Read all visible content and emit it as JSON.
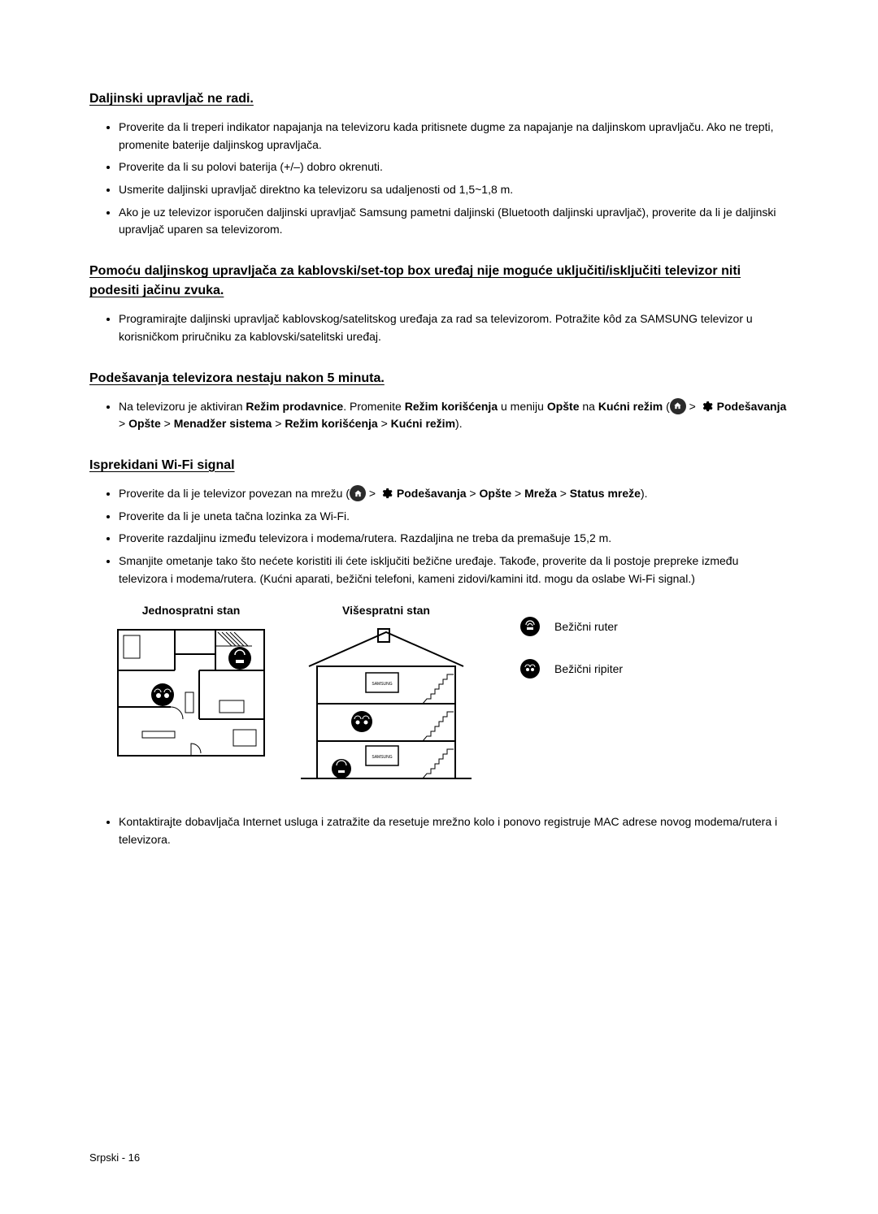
{
  "sections": [
    {
      "title": "Daljinski upravljač ne radi.",
      "items": [
        {
          "html": "Proverite da li treperi indikator napajanja na televizoru kada pritisnete dugme za napajanje na daljinskom upravljaču. Ako ne trepti, promenite baterije daljinskog upravljača."
        },
        {
          "html": "Proverite da li su polovi baterija (+/–) dobro okrenuti."
        },
        {
          "html": "Usmerite daljinski upravljač direktno ka televizoru sa udaljenosti od 1,5~1,8 m."
        },
        {
          "html": "Ako je uz televizor isporučen daljinski upravljač Samsung pametni daljinski (Bluetooth daljinski upravljač), proverite da li je daljinski upravljač uparen sa televizorom."
        }
      ]
    },
    {
      "title": "Pomoću daljinskog upravljača za kablovski/set-top box uređaj nije moguće uključiti/isključiti televizor niti podesiti jačinu zvuka.",
      "items": [
        {
          "html": "Programirajte daljinski upravljač kablovskog/satelitskog uređaja za rad sa televizorom. Potražite kôd za SAMSUNG televizor u korisničkom priručniku za kablovski/satelitski uređaj."
        }
      ]
    },
    {
      "title": "Podešavanja televizora nestaju nakon 5 minuta.",
      "items": [
        {
          "html": "Na televizoru je aktiviran <span class='bold'>Režim prodavnice</span>. Promenite <span class='bold'>Režim korišćenja</span> u meniju <span class='bold'>Opšte</span> na <span class='bold'>Kućni režim</span> (<span class='icon-circle' data-name='home-icon'><svg width='11' height='11' viewBox='0 0 24 24'><path fill='#fff' d='M12 3l9 8h-2v9h-5v-6h-4v6H5v-9H3z'/></svg></span> > <span class='icon-gear' data-name='gear-icon'><svg width='16' height='16' viewBox='0 0 24 24'><path fill='#000' d='M12 8a4 4 0 100 8 4 4 0 000-8zm9.4 4a7.8 7.8 0 00-.1-1.2l2.1-1.6-2-3.4-2.5 1a7.6 7.6 0 00-2-1.2l-.4-2.6h-4l-.4 2.6a7.6 7.6 0 00-2 1.2l-2.5-1-2 3.4 2.1 1.6a7.8 7.8 0 000 2.4L5.6 15l2 3.4 2.5-1c.6.5 1.3.9 2 1.2l.4 2.6h4l.4-2.6c.7-.3 1.4-.7 2-1.2l2.5 1 2-3.4-2.1-1.6c.1-.4.1-.8.1-1.2z'/></svg></span> <span class='bold'>Podešavanja</span> > <span class='bold'>Opšte</span> > <span class='bold'>Menadžer sistema</span> > <span class='bold'>Režim korišćenja</span> > <span class='bold'>Kućni režim</span>)."
        }
      ]
    },
    {
      "title": "Isprekidani Wi-Fi signal",
      "items": [
        {
          "html": "Proverite da li je televizor povezan na mrežu (<span class='icon-circle' data-name='home-icon'><svg width='11' height='11' viewBox='0 0 24 24'><path fill='#fff' d='M12 3l9 8h-2v9h-5v-6h-4v6H5v-9H3z'/></svg></span> > <span class='icon-gear' data-name='gear-icon'><svg width='16' height='16' viewBox='0 0 24 24'><path fill='#000' d='M12 8a4 4 0 100 8 4 4 0 000-8zm9.4 4a7.8 7.8 0 00-.1-1.2l2.1-1.6-2-3.4-2.5 1a7.6 7.6 0 00-2-1.2l-.4-2.6h-4l-.4 2.6a7.6 7.6 0 00-2 1.2l-2.5-1-2 3.4 2.1 1.6a7.8 7.8 0 000 2.4L5.6 15l2 3.4 2.5-1c.6.5 1.3.9 2 1.2l.4 2.6h4l.4-2.6c.7-.3 1.4-.7 2-1.2l2.5 1 2-3.4-2.1-1.6c.1-.4.1-.8.1-1.2z'/></svg></span> <span class='bold'>Podešavanja</span> > <span class='bold'>Opšte</span> > <span class='bold'>Mreža</span> > <span class='bold'>Status mreže</span>)."
        },
        {
          "html": "Proverite da li je uneta tačna lozinka za Wi-Fi."
        },
        {
          "html": "Proverite razdaljinu između televizora i modema/rutera. Razdaljina ne treba da premašuje 15,2 m."
        },
        {
          "html": "Smanjite ometanje tako što nećete koristiti ili ćete isključiti bežične uređaje. Takođe, proverite da li postoje prepreke između televizora i modema/rutera. (Kućni aparati, bežični telefoni, kameni zidovi/kamini itd. mogu da oslabe Wi-Fi signal.)"
        }
      ]
    }
  ],
  "diagrams": {
    "single": {
      "caption": "Jednospratni stan"
    },
    "multi": {
      "caption": "Višespratni stan"
    }
  },
  "legend": {
    "router": "Bežični ruter",
    "repeater": "Bežični ripiter"
  },
  "postDiagramItems": [
    {
      "html": "Kontaktirajte dobavljača Internet usluga i zatražite da resetuje mrežno kolo i ponovo registruje MAC adrese novog modema/rutera i televizora."
    }
  ],
  "footer": "Srpski - 16",
  "colors": {
    "text": "#000000",
    "bg": "#ffffff",
    "iconBg": "#2b2b2b"
  }
}
